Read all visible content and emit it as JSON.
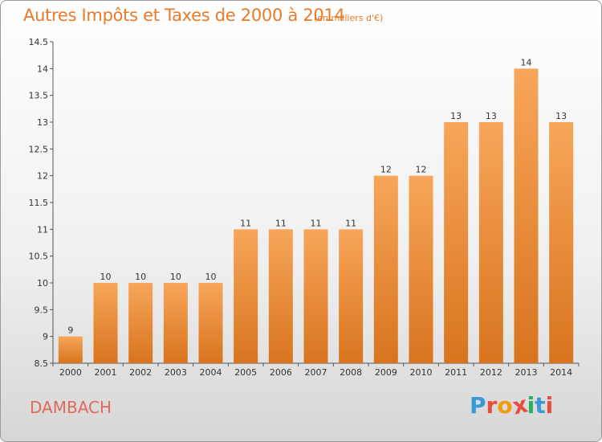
{
  "header": {
    "title": "Autres Impôts et Taxes de 2000 à 2014",
    "unit": "(en milliers d'€)"
  },
  "footer": {
    "town": "DAMBACH",
    "logo_text": "Proxiti"
  },
  "colors": {
    "bar_top": "#f7a65a",
    "bar_bottom": "#d8741e",
    "title": "#e87a2a",
    "town": "#e06a5a",
    "logo": [
      "#3a9ad9",
      "#e84c3d",
      "#f39c12",
      "#e84c3d",
      "#27ae60",
      "#3a9ad9",
      "#e84c3d"
    ]
  },
  "chart_data": {
    "type": "bar",
    "title": "Autres Impôts et Taxes de 2000 à 2014",
    "xlabel": "",
    "ylabel": "",
    "categories": [
      "2000",
      "2001",
      "2002",
      "2003",
      "2004",
      "2005",
      "2006",
      "2007",
      "2008",
      "2009",
      "2010",
      "2011",
      "2012",
      "2013",
      "2014"
    ],
    "values": [
      9,
      10,
      10,
      10,
      10,
      11,
      11,
      11,
      11,
      12,
      12,
      13,
      13,
      14,
      13
    ],
    "data_labels": [
      "9",
      "10",
      "10",
      "10",
      "10",
      "11",
      "11",
      "11",
      "11",
      "12",
      "12",
      "13",
      "13",
      "14",
      "13"
    ],
    "ylim": [
      8.5,
      14.5
    ],
    "yticks": [
      8.5,
      9,
      9.5,
      10,
      10.5,
      11,
      11.5,
      12,
      12.5,
      13,
      13.5,
      14,
      14.5
    ],
    "ytick_labels": [
      "8.5",
      "9",
      "9.5",
      "10",
      "10.5",
      "11",
      "11.5",
      "12",
      "12.5",
      "13",
      "13.5",
      "14",
      "14.5"
    ],
    "grid": false,
    "legend": "none"
  }
}
